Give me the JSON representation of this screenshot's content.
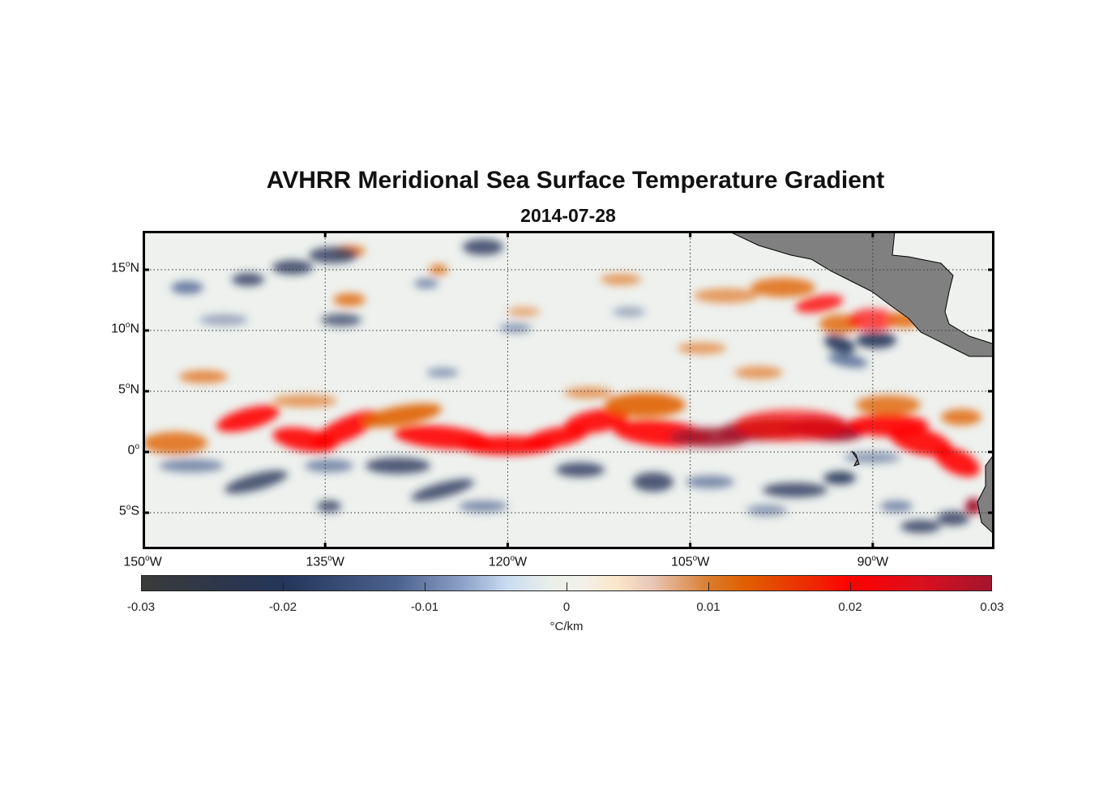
{
  "chart_data": {
    "type": "heatmap",
    "title": "AVHRR Meridional Sea Surface Temperature Gradient",
    "subtitle": "2014-07-28",
    "xlim": [
      -150,
      -80
    ],
    "ylim": [
      -8,
      18.2
    ],
    "x_ticks": [
      {
        "value": -150,
        "label": "150",
        "suffix": "W"
      },
      {
        "value": -135,
        "label": "135",
        "suffix": "W"
      },
      {
        "value": -120,
        "label": "120",
        "suffix": "W"
      },
      {
        "value": -105,
        "label": "105",
        "suffix": "W"
      },
      {
        "value": -90,
        "label": "90",
        "suffix": "W"
      }
    ],
    "y_ticks": [
      {
        "value": 15,
        "label": "15",
        "suffix": "N"
      },
      {
        "value": 10,
        "label": "10",
        "suffix": "N"
      },
      {
        "value": 5,
        "label": "5",
        "suffix": "N"
      },
      {
        "value": 0,
        "label": "0",
        "suffix": ""
      },
      {
        "value": -5,
        "label": "5",
        "suffix": "S"
      }
    ],
    "grid": true,
    "colorbar": {
      "range": [
        -0.03,
        0.03
      ],
      "ticks": [
        "-0.03",
        "-0.02",
        "-0.01",
        "0",
        "0.01",
        "0.02",
        "0.03"
      ],
      "tick_values": [
        -0.03,
        -0.02,
        -0.01,
        0,
        0.01,
        0.02,
        0.03
      ],
      "label": "°C/km",
      "placement": "bottom"
    },
    "colors": {
      "land": "#808080",
      "strong_positive": "#a3152f",
      "positive": "#ff0000",
      "moderate_positive": "#e06000",
      "neutral": "#eef1ee",
      "negative": "#4b628f",
      "strong_negative": "#243559"
    }
  }
}
